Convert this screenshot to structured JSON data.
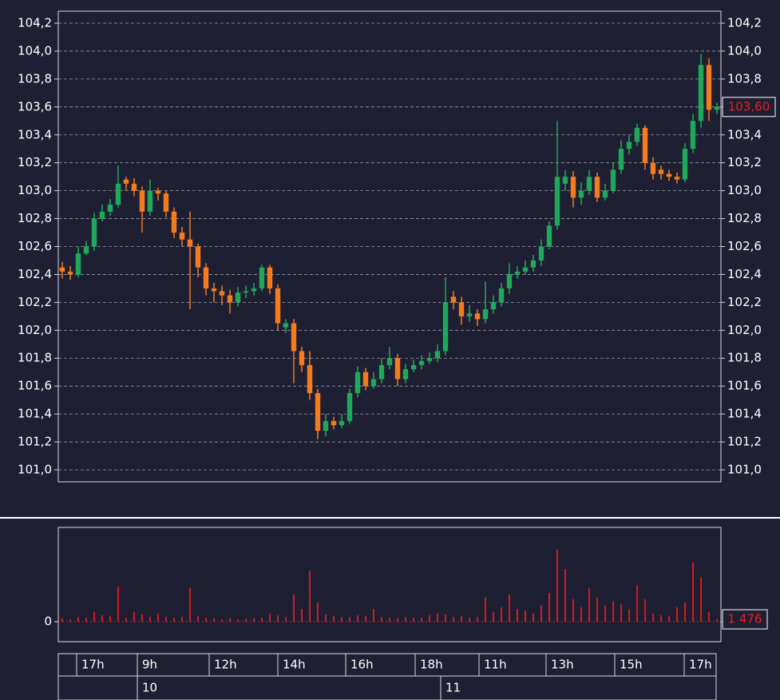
{
  "chart_data": [
    {
      "type": "candlestick",
      "xlim": [
        0,
        83
      ],
      "open": [
        102.45,
        102.42,
        102.4,
        102.55,
        102.6,
        102.8,
        102.85,
        102.9,
        103.08,
        103.05,
        103.0,
        102.85,
        103.0,
        102.98,
        102.85,
        102.7,
        102.65,
        102.6,
        102.45,
        102.3,
        102.28,
        102.25,
        102.2,
        102.27,
        102.28,
        102.3,
        102.45,
        102.3,
        102.02,
        102.05,
        101.85,
        101.75,
        101.55,
        101.28,
        101.35,
        101.32,
        101.35,
        101.55,
        101.7,
        101.6,
        101.65,
        101.75,
        101.8,
        101.65,
        101.72,
        101.75,
        101.78,
        101.8,
        101.85,
        102.24,
        102.2,
        102.1,
        102.12,
        102.08,
        102.15,
        102.2,
        102.3,
        102.4,
        102.42,
        102.45,
        102.5,
        102.6,
        102.75,
        103.05,
        103.1,
        102.95,
        103.0,
        103.1,
        102.95,
        103.0,
        103.15,
        103.3,
        103.35,
        103.45,
        103.2,
        103.15,
        103.12,
        103.1,
        103.08,
        103.3,
        103.5,
        103.9,
        103.58
      ],
      "high": [
        102.49,
        102.46,
        102.6,
        102.64,
        102.84,
        102.9,
        102.94,
        103.18,
        103.1,
        103.09,
        103.03,
        103.08,
        103.02,
        103.0,
        102.88,
        102.74,
        102.85,
        102.62,
        102.48,
        102.34,
        102.32,
        102.29,
        102.31,
        102.32,
        102.34,
        102.47,
        102.47,
        102.33,
        102.08,
        102.08,
        101.88,
        101.85,
        101.58,
        101.4,
        101.38,
        101.4,
        101.58,
        101.74,
        101.73,
        101.7,
        101.8,
        101.88,
        101.83,
        101.76,
        101.79,
        101.82,
        101.84,
        101.9,
        102.38,
        102.28,
        102.24,
        102.18,
        102.15,
        102.35,
        102.25,
        102.34,
        102.48,
        102.46,
        102.5,
        102.54,
        102.65,
        102.78,
        103.5,
        103.15,
        103.14,
        103.06,
        103.15,
        103.13,
        103.05,
        103.2,
        103.36,
        103.4,
        103.48,
        103.47,
        103.24,
        103.18,
        103.15,
        103.13,
        103.34,
        103.55,
        103.98,
        103.95,
        103.63
      ],
      "low": [
        102.37,
        102.36,
        102.38,
        102.54,
        102.57,
        102.78,
        102.82,
        102.88,
        103.0,
        102.96,
        102.7,
        102.82,
        102.93,
        102.81,
        102.66,
        102.6,
        102.15,
        102.38,
        102.25,
        102.2,
        102.18,
        102.12,
        102.17,
        102.23,
        102.25,
        102.28,
        102.26,
        102.0,
        101.98,
        101.62,
        101.7,
        101.5,
        101.22,
        101.24,
        101.29,
        101.3,
        101.33,
        101.52,
        101.57,
        101.58,
        101.62,
        101.72,
        101.6,
        101.62,
        101.7,
        101.72,
        101.76,
        101.77,
        101.82,
        102.15,
        102.04,
        102.06,
        102.03,
        102.05,
        102.12,
        102.17,
        102.26,
        102.37,
        102.4,
        102.42,
        102.46,
        102.58,
        102.72,
        103.0,
        102.88,
        102.9,
        102.97,
        102.92,
        102.93,
        102.98,
        103.12,
        103.26,
        103.32,
        103.15,
        103.08,
        103.08,
        103.07,
        103.05,
        103.06,
        103.27,
        103.45,
        103.5,
        103.55
      ],
      "close": [
        102.42,
        102.4,
        102.55,
        102.6,
        102.8,
        102.85,
        102.9,
        103.05,
        103.05,
        103.0,
        102.85,
        103.0,
        102.98,
        102.85,
        102.7,
        102.65,
        102.6,
        102.45,
        102.3,
        102.28,
        102.25,
        102.2,
        102.27,
        102.28,
        102.3,
        102.45,
        102.3,
        102.05,
        102.05,
        101.85,
        101.75,
        101.55,
        101.28,
        101.35,
        101.32,
        101.35,
        101.55,
        101.7,
        101.6,
        101.65,
        101.75,
        101.8,
        101.65,
        101.72,
        101.75,
        101.78,
        101.8,
        101.85,
        102.2,
        102.2,
        102.1,
        102.12,
        102.08,
        102.15,
        102.2,
        102.3,
        102.4,
        102.42,
        102.45,
        102.5,
        102.6,
        102.75,
        103.1,
        103.1,
        102.95,
        103.0,
        103.1,
        102.95,
        103.0,
        103.15,
        103.3,
        103.35,
        103.45,
        103.2,
        103.12,
        103.12,
        103.1,
        103.08,
        103.3,
        103.5,
        103.9,
        103.58,
        103.6
      ],
      "up_color": "#1ea85a",
      "down_color": "#f47c1c",
      "ylim": [
        100.914,
        104.286
      ],
      "yticks": [
        {
          "value": 101.0,
          "label": "101,0"
        },
        {
          "value": 101.2,
          "label": "101,2"
        },
        {
          "value": 101.4,
          "label": "101,4"
        },
        {
          "value": 101.6,
          "label": "101,6"
        },
        {
          "value": 101.8,
          "label": "101,8"
        },
        {
          "value": 102.0,
          "label": "102,0"
        },
        {
          "value": 102.2,
          "label": "102,2"
        },
        {
          "value": 102.4,
          "label": "102,4"
        },
        {
          "value": 102.6,
          "label": "102,6"
        },
        {
          "value": 102.8,
          "label": "102,8"
        },
        {
          "value": 103.0,
          "label": "103,0"
        },
        {
          "value": 103.2,
          "label": "103,2"
        },
        {
          "value": 103.4,
          "label": "103,4"
        },
        {
          "value": 103.6,
          "label": "103,6"
        },
        {
          "value": 103.8,
          "label": "103,8"
        },
        {
          "value": 104.0,
          "label": "104,0"
        },
        {
          "value": 104.2,
          "label": "104,2"
        }
      ],
      "grid": true,
      "last_label": {
        "value": 103.6,
        "label": "103,60"
      },
      "xticks": [
        {
          "value": 2.3,
          "label": "17h"
        },
        {
          "value": 9.9,
          "label": "9h"
        },
        {
          "value": 18.9,
          "label": "12h"
        },
        {
          "value": 27.5,
          "label": "14h"
        },
        {
          "value": 36,
          "label": "16h"
        },
        {
          "value": 44.7,
          "label": "18h"
        },
        {
          "value": 52.7,
          "label": "11h"
        },
        {
          "value": 61.1,
          "label": "13h"
        },
        {
          "value": 69.7,
          "label": "15h"
        },
        {
          "value": 78.4,
          "label": "17h"
        }
      ],
      "date_ticks": [
        {
          "value": 9.9,
          "label": "10"
        },
        {
          "value": 47.9,
          "label": "11"
        }
      ]
    },
    {
      "type": "bar",
      "xlim": [
        0,
        83
      ],
      "values": [
        2000,
        1500,
        3000,
        2500,
        6000,
        4000,
        3500,
        22000,
        2500,
        6000,
        4500,
        3000,
        5000,
        3000,
        2500,
        3000,
        21000,
        3500,
        2500,
        2000,
        1500,
        2000,
        1500,
        1800,
        2000,
        2500,
        5000,
        4000,
        3000,
        17000,
        8000,
        32000,
        12000,
        4500,
        3500,
        3000,
        3000,
        4000,
        3500,
        8000,
        3000,
        2500,
        2000,
        3000,
        2500,
        2500,
        4000,
        5000,
        4500,
        3000,
        3500,
        2500,
        3000,
        15000,
        6000,
        9000,
        17000,
        8000,
        7000,
        5000,
        10000,
        18000,
        45000,
        33000,
        14000,
        9000,
        21000,
        15000,
        10000,
        13000,
        11000,
        8000,
        23000,
        14000,
        5000,
        4000,
        3500,
        9000,
        12000,
        37000,
        28000,
        6000,
        1476
      ],
      "color": "#d01c1c",
      "ylim": [
        -12500,
        59000
      ],
      "yticks": [
        0
      ],
      "last_label": {
        "value": 1476,
        "label": "1 476"
      }
    }
  ]
}
